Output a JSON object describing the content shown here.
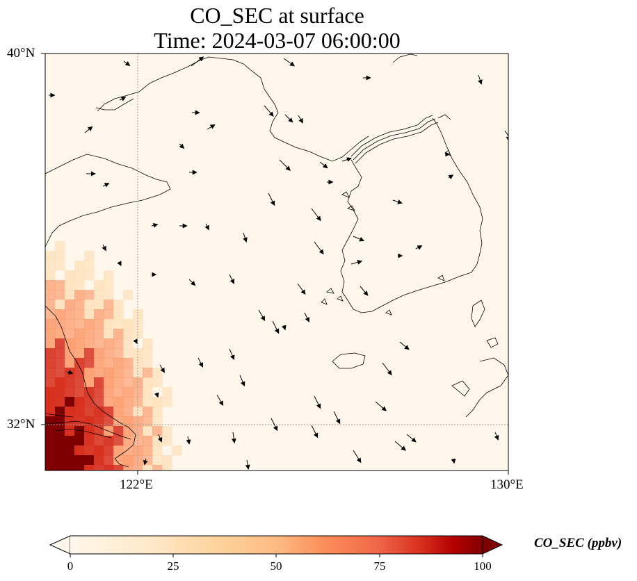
{
  "title": {
    "line1": "CO_SEC at surface",
    "line2": "Time: 2024-03-07 06:00:00"
  },
  "map": {
    "lon_range": [
      118.0,
      130.0
    ],
    "lat_range": [
      31.0,
      40.0
    ],
    "gridlines": {
      "style": "dotted",
      "color": "#999999",
      "lons": [
        122
      ],
      "lats": [
        32
      ]
    },
    "x_ticks": [
      "122°E",
      "130°E"
    ],
    "y_ticks": [
      "40°N",
      "32°N"
    ],
    "field_colors": [
      "#fff7ec",
      "#fdd49e",
      "#fc8d59",
      "#d7301f",
      "#7f0000"
    ]
  },
  "colorbar": {
    "label": "CO_SEC (ppbv)",
    "ticks": [
      "0",
      "25",
      "50",
      "75",
      "100"
    ],
    "min": 0,
    "max": 100,
    "extend": "both",
    "colormap": "OrRd"
  }
}
